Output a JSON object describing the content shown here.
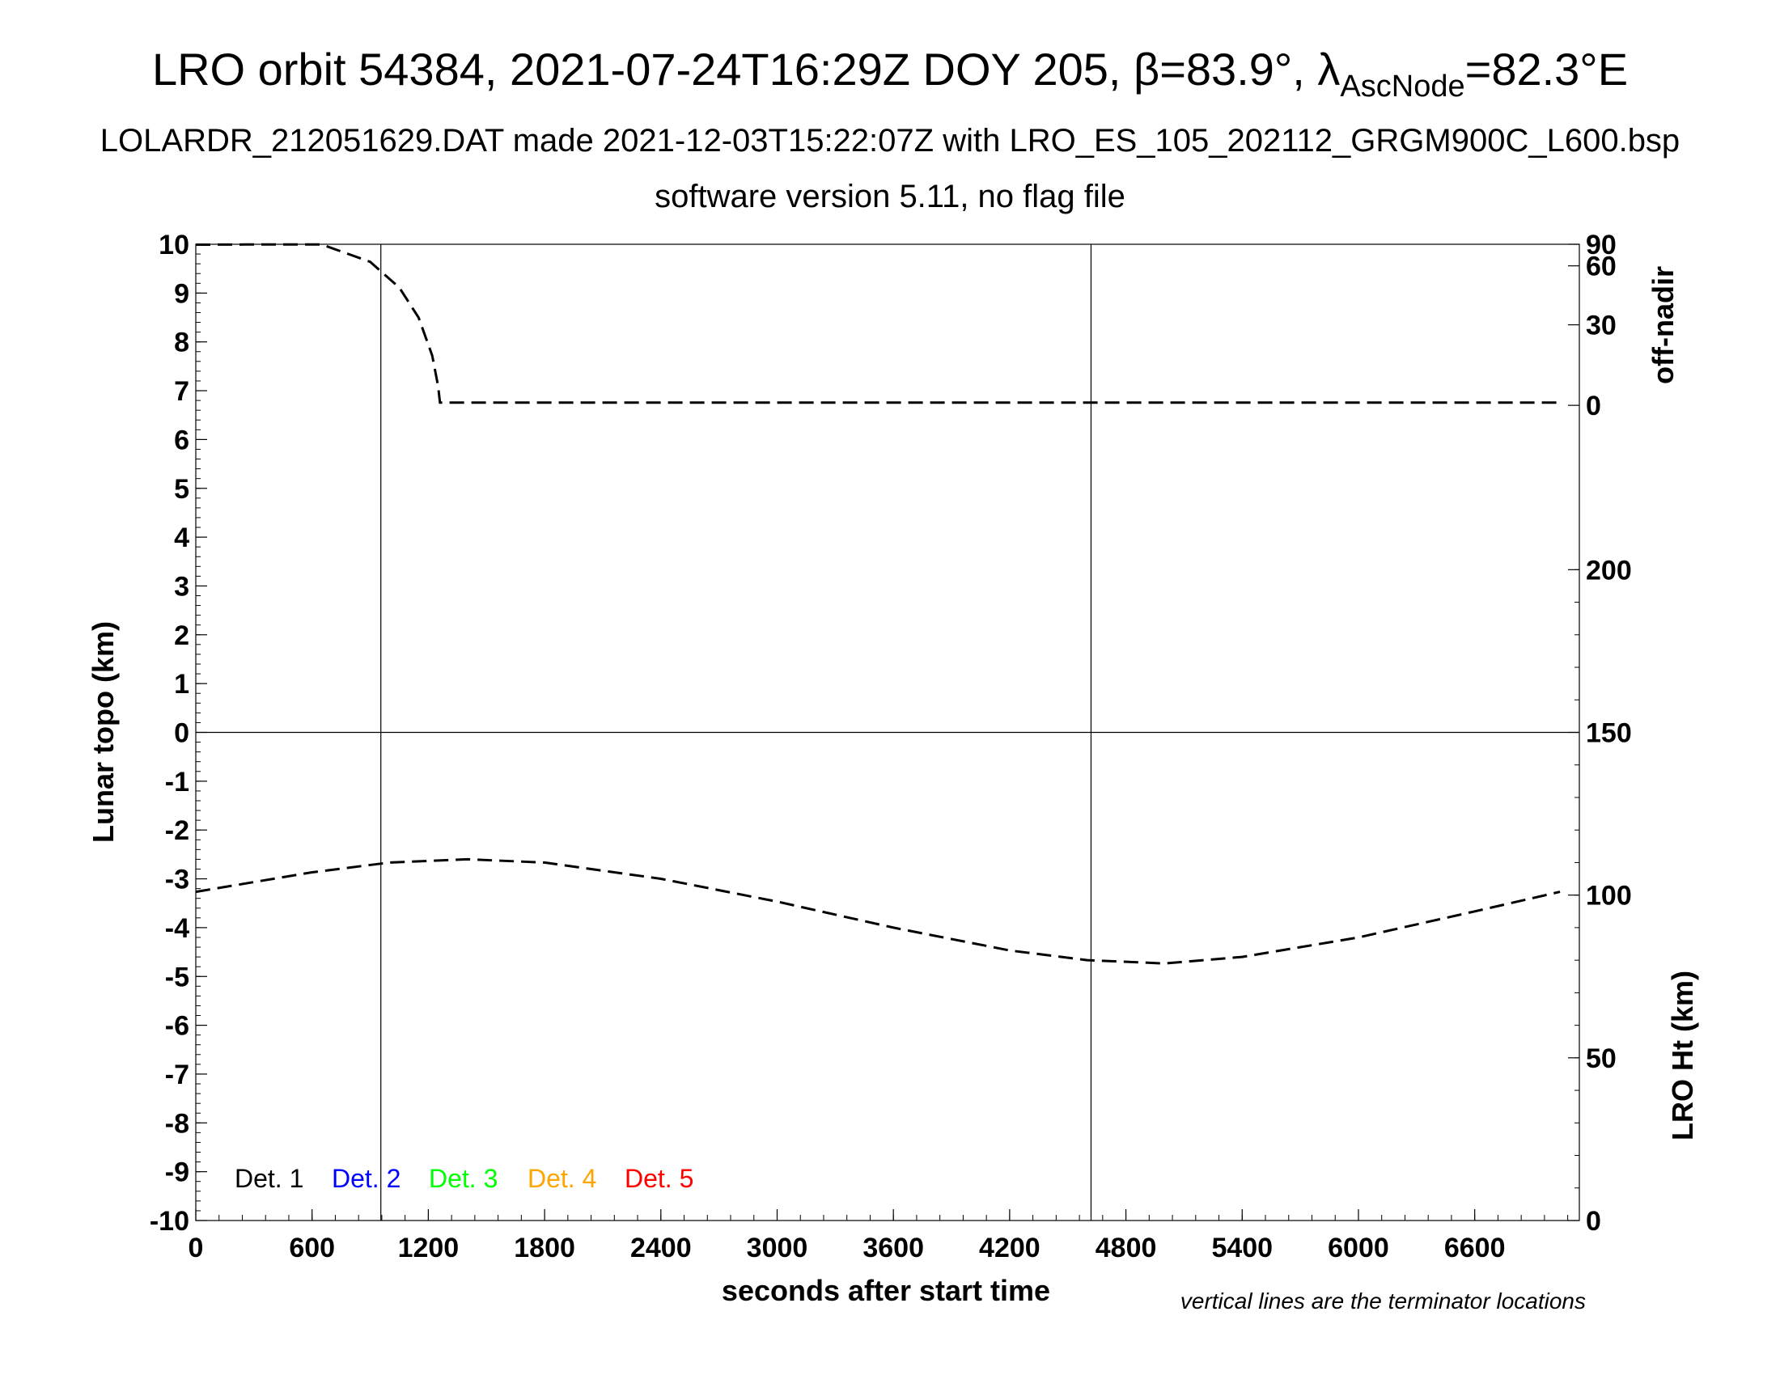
{
  "title": {
    "main_prefix": "LRO orbit 54384, 2021-07-24T16:29Z DOY 205, β=83.9°, λ",
    "main_sub": "AscNode",
    "main_suffix": "=82.3°E",
    "line2": "LOLARDR_212051629.DAT made 2021-12-03T15:22:07Z with LRO_ES_105_202112_GRGM900C_L600.bsp",
    "line3": "software version 5.11, no flag file"
  },
  "note": "vertical lines are the terminator locations",
  "chart_data": {
    "type": "line",
    "xlabel": "seconds after start time",
    "ylabel": "Lunar topo (km)",
    "xlim": [
      0,
      7140
    ],
    "ylim": [
      -10,
      10
    ],
    "x_ticks": [
      0,
      600,
      1200,
      1800,
      2400,
      3000,
      3600,
      4200,
      4800,
      5400,
      6000,
      6600
    ],
    "y_ticks": [
      10,
      9,
      8,
      7,
      6,
      5,
      4,
      3,
      2,
      1,
      0,
      -1,
      -2,
      -3,
      -4,
      -5,
      -6,
      -7,
      -8,
      -9,
      -10
    ],
    "terminator_x": [
      955,
      4620
    ],
    "right_axis_top": {
      "label": "off-nadir",
      "ticks": [
        "90",
        "60",
        "30",
        "0"
      ]
    },
    "right_axis_bottom": {
      "label": "LRO Ht (km)",
      "ticks": [
        "200",
        "150",
        "100",
        "50",
        "0"
      ],
      "range": [
        0,
        300
      ]
    },
    "legend": [
      {
        "label": "Det. 1",
        "color": "#000000"
      },
      {
        "label": "Det. 2",
        "color": "#0000ff"
      },
      {
        "label": "Det. 3",
        "color": "#00ff00"
      },
      {
        "label": "Det. 4",
        "color": "#ffa500"
      },
      {
        "label": "Det. 5",
        "color": "#ff0000"
      }
    ],
    "series": [
      {
        "axis": "off-nadir",
        "style": "dashed",
        "x": [
          0,
          250,
          650,
          900,
          1050,
          1150,
          1220,
          1250,
          1260,
          1300,
          2500,
          4000,
          5500,
          7040
        ],
        "y": [
          86,
          87,
          87,
          63,
          47,
          33,
          18,
          7,
          1,
          1,
          1,
          1,
          1,
          1
        ]
      },
      {
        "axis": "LRO Ht (km)",
        "style": "dashed",
        "x": [
          0,
          600,
          1000,
          1400,
          1800,
          2400,
          3000,
          3600,
          4200,
          4600,
          5000,
          5400,
          6000,
          6600,
          7040
        ],
        "y": [
          101,
          107,
          110,
          111,
          110,
          105,
          98,
          90,
          83,
          80,
          79,
          81,
          87,
          95,
          101
        ]
      }
    ]
  }
}
